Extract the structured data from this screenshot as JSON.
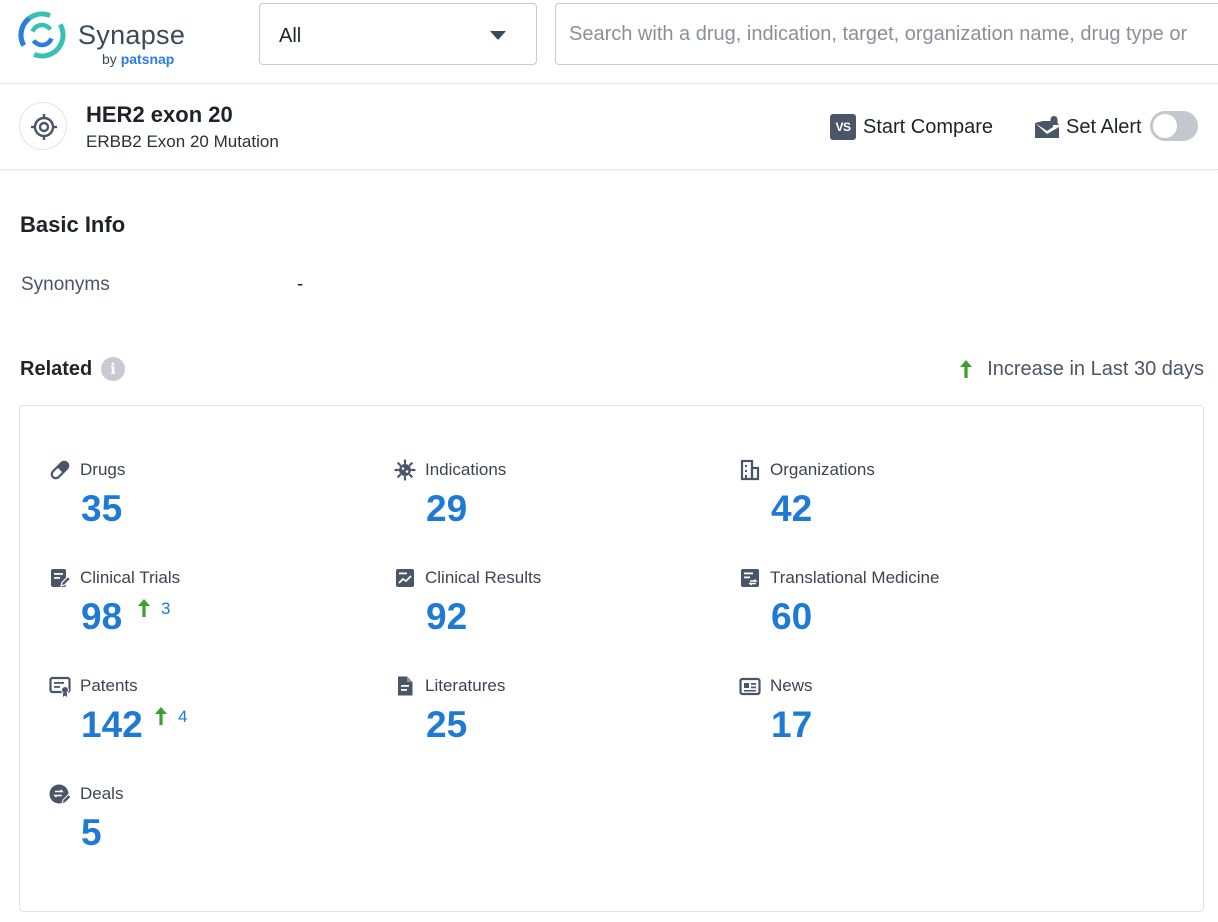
{
  "logo": {
    "title": "Synapse",
    "by": "by",
    "brand": "patsnap"
  },
  "search": {
    "scope_value": "All",
    "placeholder": "Search with a drug, indication, target, organization name, drug type or"
  },
  "entity": {
    "title": "HER2 exon 20",
    "subtitle": "ERBB2 Exon 20 Mutation",
    "compare_icon_text": "VS",
    "compare_label": "Start Compare",
    "alert_label": "Set Alert",
    "alert_enabled": false
  },
  "basic_info": {
    "title": "Basic Info",
    "synonyms_label": "Synonyms",
    "synonyms_value": "-"
  },
  "related": {
    "title": "Related",
    "legend_label": "Increase in Last 30 days",
    "accent_color": "#1f7ad6",
    "increase_color": "#3aa02b",
    "items": [
      {
        "label": "Drugs",
        "count": "35",
        "icon": "pill-icon"
      },
      {
        "label": "Indications",
        "count": "29",
        "icon": "virus-icon"
      },
      {
        "label": "Organizations",
        "count": "42",
        "icon": "building-icon"
      },
      {
        "label": "Clinical Trials",
        "count": "98",
        "increase": "3",
        "icon": "clipboard-edit-icon"
      },
      {
        "label": "Clinical Results",
        "count": "92",
        "icon": "chart-report-icon"
      },
      {
        "label": "Translational Medicine",
        "count": "60",
        "icon": "document-exchange-icon"
      },
      {
        "label": "Patents",
        "count": "142",
        "increase": "4",
        "icon": "certificate-icon"
      },
      {
        "label": "Literatures",
        "count": "25",
        "icon": "document-icon"
      },
      {
        "label": "News",
        "count": "17",
        "icon": "newspaper-icon"
      },
      {
        "label": "Deals",
        "count": "5",
        "icon": "deal-icon"
      }
    ]
  }
}
